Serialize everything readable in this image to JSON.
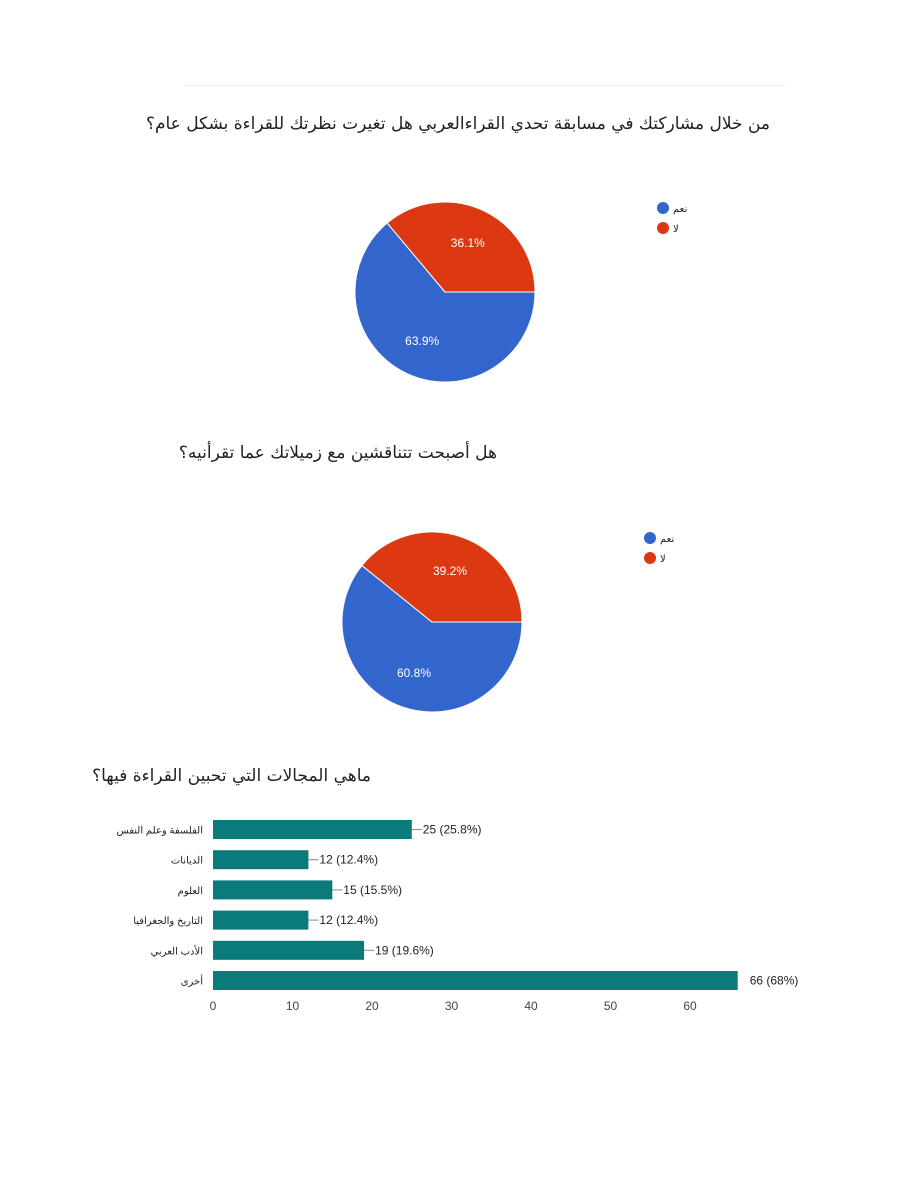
{
  "titles": [
    "من خلال مشاركتك في مسابقة تحدي القراءالعربي هل تغيرت نظرتك للقراءة بشكل عام؟",
    "هل أصبحت تتناقشين مع زميلاتك عما تقرأنيه؟",
    "ماهي المجالات التي تحبين القراءة فيها؟"
  ],
  "colors": {
    "blue": "#3366cc",
    "red": "#dc3912",
    "teal": "#0b7a7a"
  },
  "chart_data": [
    {
      "type": "pie",
      "title": "من خلال مشاركتك في مسابقة تحدي القراءالعربي هل تغيرت نظرتك للقراءة بشكل عام؟",
      "legend_position": "right",
      "slices": [
        {
          "label": "نعم",
          "value": 63.9,
          "display": "63.9%",
          "color": "#3366cc"
        },
        {
          "label": "لا",
          "value": 36.1,
          "display": "36.1%",
          "color": "#dc3912"
        }
      ]
    },
    {
      "type": "pie",
      "title": "هل أصبحت تتناقشين مع زميلاتك عما تقرأنيه؟",
      "legend_position": "right",
      "slices": [
        {
          "label": "نعم",
          "value": 60.8,
          "display": "60.8%",
          "color": "#3366cc"
        },
        {
          "label": "لا",
          "value": 39.2,
          "display": "39.2%",
          "color": "#dc3912"
        }
      ]
    },
    {
      "type": "bar",
      "orientation": "horizontal",
      "title": "ماهي المجالات التي تحبين القراءة فيها؟",
      "categories": [
        "الفلسفة وعلم النفس",
        "الديانات",
        "العلوم",
        "التاريخ والجغرافيا",
        "الأدب العربي",
        "أخرى"
      ],
      "values": [
        25,
        12,
        15,
        12,
        19,
        66
      ],
      "labels": [
        "25 (25.8%)",
        "12 (12.4%)",
        "15 (15.5%)",
        "12 (12.4%)",
        "19 (19.6%)",
        "66 (68%)"
      ],
      "xlim": [
        0,
        70
      ],
      "xticks": [
        0,
        10,
        20,
        30,
        40,
        50,
        60
      ],
      "color": "#0b7a7a",
      "grid": false
    }
  ]
}
